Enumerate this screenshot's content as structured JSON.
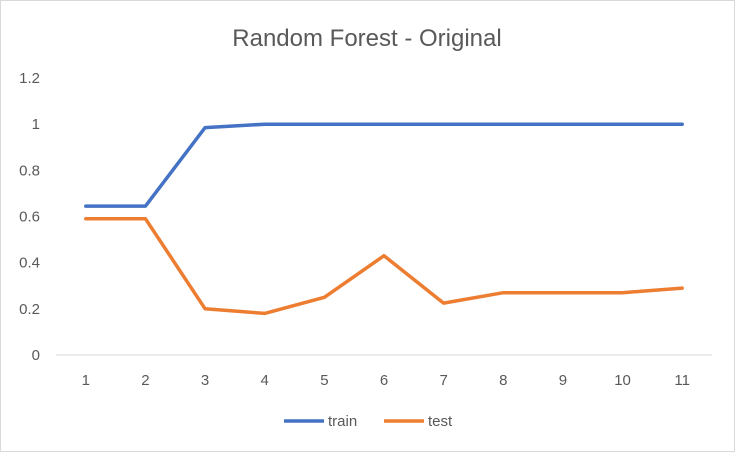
{
  "chart_data": {
    "type": "line",
    "title": "Random Forest - Original",
    "xlabel": "",
    "ylabel": "",
    "categories": [
      "1",
      "2",
      "3",
      "4",
      "5",
      "6",
      "7",
      "8",
      "9",
      "10",
      "11"
    ],
    "ylim": [
      0,
      1.2
    ],
    "yticks": [
      "0",
      "0.2",
      "0.4",
      "0.6",
      "0.8",
      "1",
      "1.2"
    ],
    "ytick_values": [
      0,
      0.2,
      0.4,
      0.6,
      0.8,
      1.0,
      1.2
    ],
    "grid": false,
    "legend_position": "bottom",
    "series": [
      {
        "name": "train",
        "color": "#4472c4",
        "values": [
          0.645,
          0.645,
          0.985,
          1.0,
          1.0,
          1.0,
          1.0,
          1.0,
          1.0,
          1.0,
          1.0
        ]
      },
      {
        "name": "test",
        "color": "#ed7d31",
        "values": [
          0.59,
          0.59,
          0.2,
          0.18,
          0.25,
          0.43,
          0.225,
          0.27,
          0.27,
          0.27,
          0.29
        ]
      }
    ]
  }
}
